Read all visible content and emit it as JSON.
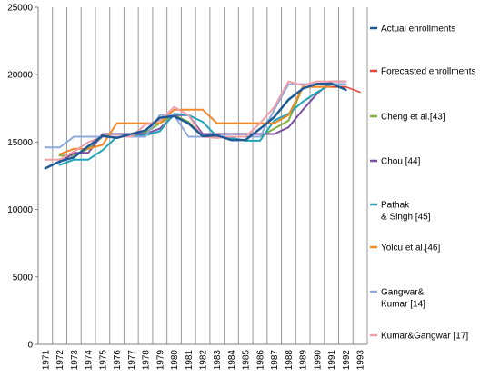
{
  "chart_data": {
    "type": "line",
    "title": "",
    "xlabel": "",
    "ylabel": "",
    "x": [
      "1971",
      "1972",
      "1973",
      "1974",
      "1975",
      "1976",
      "1977",
      "1978",
      "1979",
      "1980",
      "1981",
      "1982",
      "1983",
      "1984",
      "1985",
      "1986",
      "1987",
      "1988",
      "1989",
      "1990",
      "1991",
      "1992",
      "1993"
    ],
    "ylim": [
      0,
      25000
    ],
    "yticks": [
      0,
      5000,
      10000,
      15000,
      20000,
      25000
    ],
    "grid": "vertical",
    "legend_position": "right",
    "series": [
      {
        "name": "Actual enrollments",
        "color": "#1f5a96",
        "width": 2.5,
        "values": [
          13055,
          13563,
          13867,
          14696,
          15460,
          15311,
          15603,
          15861,
          16807,
          16919,
          16388,
          15433,
          15497,
          15145,
          15163,
          15984,
          16859,
          18150,
          18970,
          19328,
          19337,
          18876,
          null
        ]
      },
      {
        "name": "Forecasted enrollments",
        "color": "#e8423c",
        "width": 1.5,
        "values": [
          null,
          null,
          null,
          null,
          null,
          null,
          null,
          null,
          null,
          null,
          null,
          null,
          null,
          null,
          null,
          null,
          null,
          null,
          null,
          null,
          19100,
          19100,
          18700
        ]
      },
      {
        "name": "Cheng et al.[43]",
        "color": "#7fb041",
        "width": 2,
        "values": [
          null,
          14000,
          14000,
          14500,
          15400,
          15400,
          15400,
          15700,
          16400,
          17000,
          16500,
          15400,
          15400,
          15400,
          15400,
          15400,
          16000,
          16600,
          19100,
          19100,
          19100,
          19100,
          null
        ]
      },
      {
        "name": "Chou [44]",
        "color": "#7a4ea0",
        "width": 2,
        "values": [
          null,
          13500,
          14200,
          14200,
          15600,
          15600,
          15600,
          15600,
          16000,
          17000,
          17000,
          15600,
          15600,
          15600,
          15600,
          15600,
          15600,
          16100,
          17400,
          18600,
          19500,
          19500,
          null
        ]
      },
      {
        "name": "Pathak & Singh [45]",
        "color": "#20a5b8",
        "width": 2,
        "values": [
          null,
          13300,
          13700,
          13700,
          14400,
          15400,
          15400,
          15500,
          15800,
          17100,
          17000,
          16500,
          15400,
          15300,
          15100,
          15100,
          16600,
          17100,
          18000,
          18700,
          19300,
          19300,
          null
        ]
      },
      {
        "name": "Yolcu et al.[46]",
        "color": "#f08a2a",
        "width": 2,
        "values": [
          null,
          14100,
          14500,
          14500,
          14800,
          16400,
          16400,
          16400,
          16400,
          17400,
          17400,
          17400,
          16400,
          16400,
          16400,
          16400,
          16400,
          17000,
          19100,
          19100,
          19100,
          19100,
          null
        ]
      },
      {
        "name": "Gangwar& Kumar [14]",
        "color": "#8ea9db",
        "width": 2,
        "values": [
          14600,
          14600,
          15400,
          15400,
          15400,
          15400,
          15400,
          15400,
          17000,
          17000,
          15400,
          15400,
          15400,
          15400,
          15400,
          15400,
          17400,
          19300,
          19300,
          19300,
          19300,
          19300,
          null
        ]
      },
      {
        "name": "Kumar&Gangwar [17]",
        "color": "#f09ea8",
        "width": 2,
        "values": [
          13700,
          13700,
          14300,
          15000,
          15400,
          15400,
          15400,
          16300,
          16600,
          17600,
          17000,
          15400,
          15300,
          15400,
          15400,
          16400,
          17600,
          19500,
          19200,
          19500,
          19500,
          19500,
          null
        ]
      }
    ]
  },
  "legend": {
    "items": [
      {
        "lines": [
          "Actual enrollments"
        ],
        "color": "#1f5a96"
      },
      {
        "lines": [
          "Forecasted enrollments"
        ],
        "color": "#e8423c"
      },
      {
        "lines": [
          "Cheng et al.[43]"
        ],
        "color": "#7fb041"
      },
      {
        "lines": [
          "Chou [44]"
        ],
        "color": "#7a4ea0"
      },
      {
        "lines": [
          "Pathak",
          "& Singh [45]"
        ],
        "color": "#20a5b8"
      },
      {
        "lines": [
          "Yolcu et al.[46]"
        ],
        "color": "#f08a2a"
      },
      {
        "lines": [
          "Gangwar&",
          "Kumar [14]"
        ],
        "color": "#8ea9db"
      },
      {
        "lines": [
          "Kumar&Gangwar [17]"
        ],
        "color": "#f09ea8"
      }
    ]
  }
}
